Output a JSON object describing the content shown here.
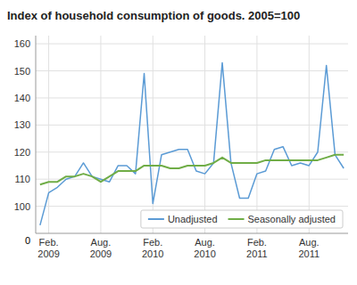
{
  "chart_data": {
    "type": "line",
    "title": "Index of household consumption of goods. 2005=100",
    "categories": [
      null,
      "Feb.\n2009",
      null,
      null,
      null,
      null,
      null,
      "Aug.\n2009",
      null,
      null,
      null,
      null,
      null,
      "Feb.\n2010",
      null,
      null,
      null,
      null,
      null,
      "Aug.\n2010",
      null,
      null,
      null,
      null,
      null,
      "Feb.\n2011",
      null,
      null,
      null,
      null,
      null,
      "Aug.\n2011",
      null,
      null,
      null,
      null
    ],
    "series": [
      {
        "name": "Unadjusted",
        "color": "#5b9bd5",
        "values": [
          93,
          105,
          107,
          110,
          111,
          116,
          111,
          110,
          109,
          115,
          115,
          112,
          149,
          101,
          119,
          120,
          121,
          121,
          113,
          112,
          116,
          153,
          116,
          103,
          103,
          112,
          113,
          121,
          122,
          115,
          116,
          115,
          120,
          152,
          119,
          114
        ]
      },
      {
        "name": "Seasonally adjusted",
        "color": "#70ad47",
        "values": [
          108,
          109,
          109,
          111,
          111,
          112,
          111,
          109,
          111,
          113,
          113,
          113,
          115,
          115,
          115,
          114,
          114,
          115,
          115,
          115,
          116,
          118,
          116,
          116,
          116,
          116,
          117,
          117,
          117,
          117,
          117,
          117,
          117,
          118,
          119,
          119
        ]
      }
    ],
    "ylim": [
      90,
      163
    ],
    "yticks": [
      100,
      110,
      120,
      130,
      140,
      150,
      160
    ],
    "annotations": [
      "0"
    ],
    "grid": true,
    "legend": "lower right"
  }
}
